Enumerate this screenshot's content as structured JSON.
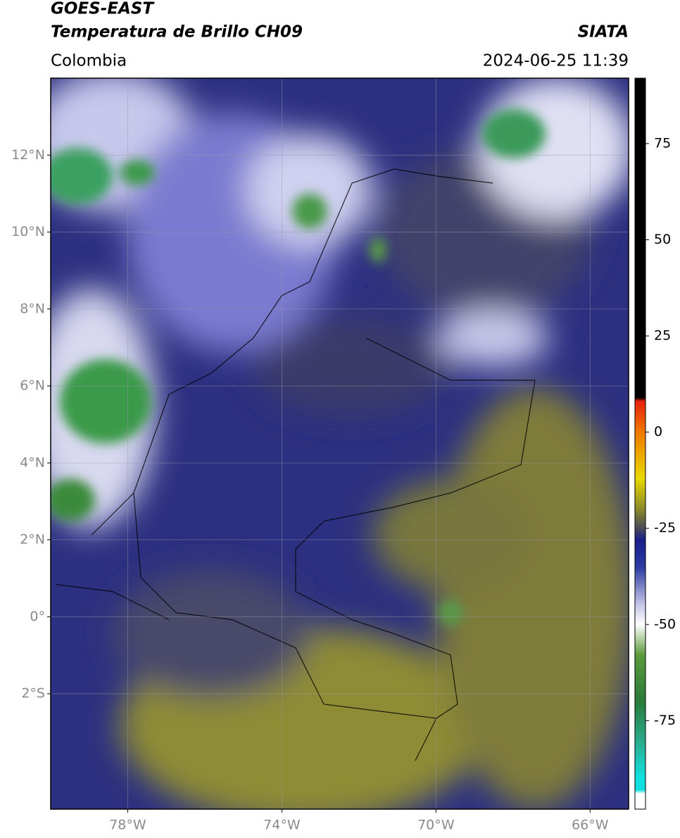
{
  "header": {
    "title": "GOES-EAST",
    "subtitle": "Temperatura de Brillo CH09",
    "source": "SIATA",
    "region": "Colombia",
    "datetime": "2024-06-25 11:39"
  },
  "map": {
    "xlim": [
      -80,
      -65
    ],
    "ylim": [
      -5,
      14
    ],
    "xticks": [
      {
        "value": -78,
        "label": "78°W"
      },
      {
        "value": -74,
        "label": "74°W"
      },
      {
        "value": -70,
        "label": "70°W"
      },
      {
        "value": -66,
        "label": "66°W"
      }
    ],
    "yticks": [
      {
        "value": 12,
        "label": "12°N"
      },
      {
        "value": 10,
        "label": "10°N"
      },
      {
        "value": 8,
        "label": "8°N"
      },
      {
        "value": 6,
        "label": "6°N"
      },
      {
        "value": 4,
        "label": "4°N"
      },
      {
        "value": 2,
        "label": "2°N"
      },
      {
        "value": 0,
        "label": "0°"
      },
      {
        "value": -2,
        "label": "2°S"
      }
    ],
    "grid": true
  },
  "colorbar": {
    "clim": [
      -98,
      92
    ],
    "ticks": [
      75,
      50,
      25,
      0,
      -25,
      -50,
      -75
    ],
    "colormap": [
      {
        "value": 92,
        "color": "#000000"
      },
      {
        "value": 9,
        "color": "#000000"
      },
      {
        "value": 8,
        "color": "#e8200e"
      },
      {
        "value": 0,
        "color": "#f07a00"
      },
      {
        "value": -12,
        "color": "#e8d800"
      },
      {
        "value": -20,
        "color": "#8a8a2a"
      },
      {
        "value": -25,
        "color": "#4a4a5a"
      },
      {
        "value": -28,
        "color": "#1a1f8a"
      },
      {
        "value": -35,
        "color": "#2a3aa0"
      },
      {
        "value": -45,
        "color": "#c8c8e8"
      },
      {
        "value": -50,
        "color": "#ffffff"
      },
      {
        "value": -58,
        "color": "#5a9a3a"
      },
      {
        "value": -70,
        "color": "#2a7a3a"
      },
      {
        "value": -80,
        "color": "#2aaa8a"
      },
      {
        "value": -90,
        "color": "#10e0e0"
      },
      {
        "value": -93,
        "color": "#10e0e0"
      },
      {
        "value": -94,
        "color": "#ffffff"
      },
      {
        "value": -98,
        "color": "#ffffff"
      }
    ]
  }
}
